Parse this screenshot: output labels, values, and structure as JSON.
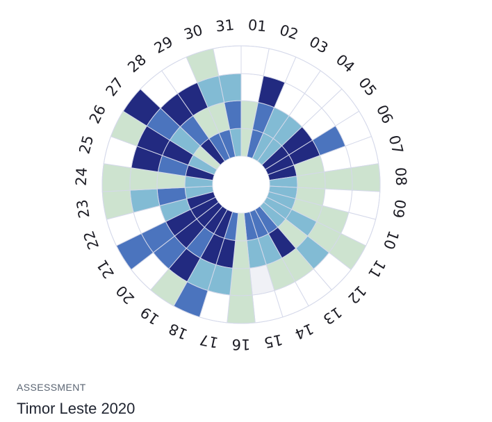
{
  "chart_data": {
    "type": "radial-heatmap",
    "categories": [
      "01",
      "02",
      "03",
      "04",
      "05",
      "06",
      "07",
      "08",
      "09",
      "10",
      "11",
      "12",
      "13",
      "14",
      "15",
      "16",
      "17",
      "18",
      "19",
      "20",
      "21",
      "22",
      "23",
      "24",
      "25",
      "26",
      "27",
      "28",
      "29",
      "30",
      "31"
    ],
    "ring_count": 4,
    "level_colors": {
      "0": "#ffffff",
      "1": "#f0f1f6",
      "2": "#cde3cf",
      "3": "#82bbd4",
      "4": "#4b74be",
      "5": "#222a80"
    },
    "values": [
      [
        2,
        2,
        0,
        0
      ],
      [
        4,
        4,
        5,
        0
      ],
      [
        3,
        3,
        0,
        0
      ],
      [
        3,
        3,
        0,
        0
      ],
      [
        5,
        5,
        0,
        0
      ],
      [
        5,
        5,
        4,
        0
      ],
      [
        5,
        2,
        0,
        0
      ],
      [
        3,
        2,
        2,
        2
      ],
      [
        3,
        2,
        0,
        0
      ],
      [
        3,
        2,
        2,
        0
      ],
      [
        3,
        3,
        2,
        2
      ],
      [
        3,
        2,
        3,
        0
      ],
      [
        4,
        5,
        2,
        0
      ],
      [
        4,
        3,
        2,
        0
      ],
      [
        4,
        3,
        1,
        0
      ],
      [
        2,
        2,
        2,
        2
      ],
      [
        4,
        5,
        3,
        0
      ],
      [
        5,
        5,
        3,
        4
      ],
      [
        5,
        4,
        5,
        2
      ],
      [
        5,
        5,
        4,
        0
      ],
      [
        5,
        5,
        4,
        4
      ],
      [
        5,
        3,
        0,
        0
      ],
      [
        3,
        4,
        3,
        2
      ],
      [
        3,
        2,
        2,
        2
      ],
      [
        5,
        4,
        5,
        0
      ],
      [
        3,
        5,
        5,
        2
      ],
      [
        2,
        3,
        4,
        5
      ],
      [
        5,
        4,
        5,
        0
      ],
      [
        4,
        2,
        5,
        0
      ],
      [
        4,
        2,
        3,
        2
      ],
      [
        3,
        4,
        3,
        0
      ]
    ]
  },
  "caption": {
    "kicker": "ASSESSMENT",
    "title": "Timor Leste 2020"
  }
}
